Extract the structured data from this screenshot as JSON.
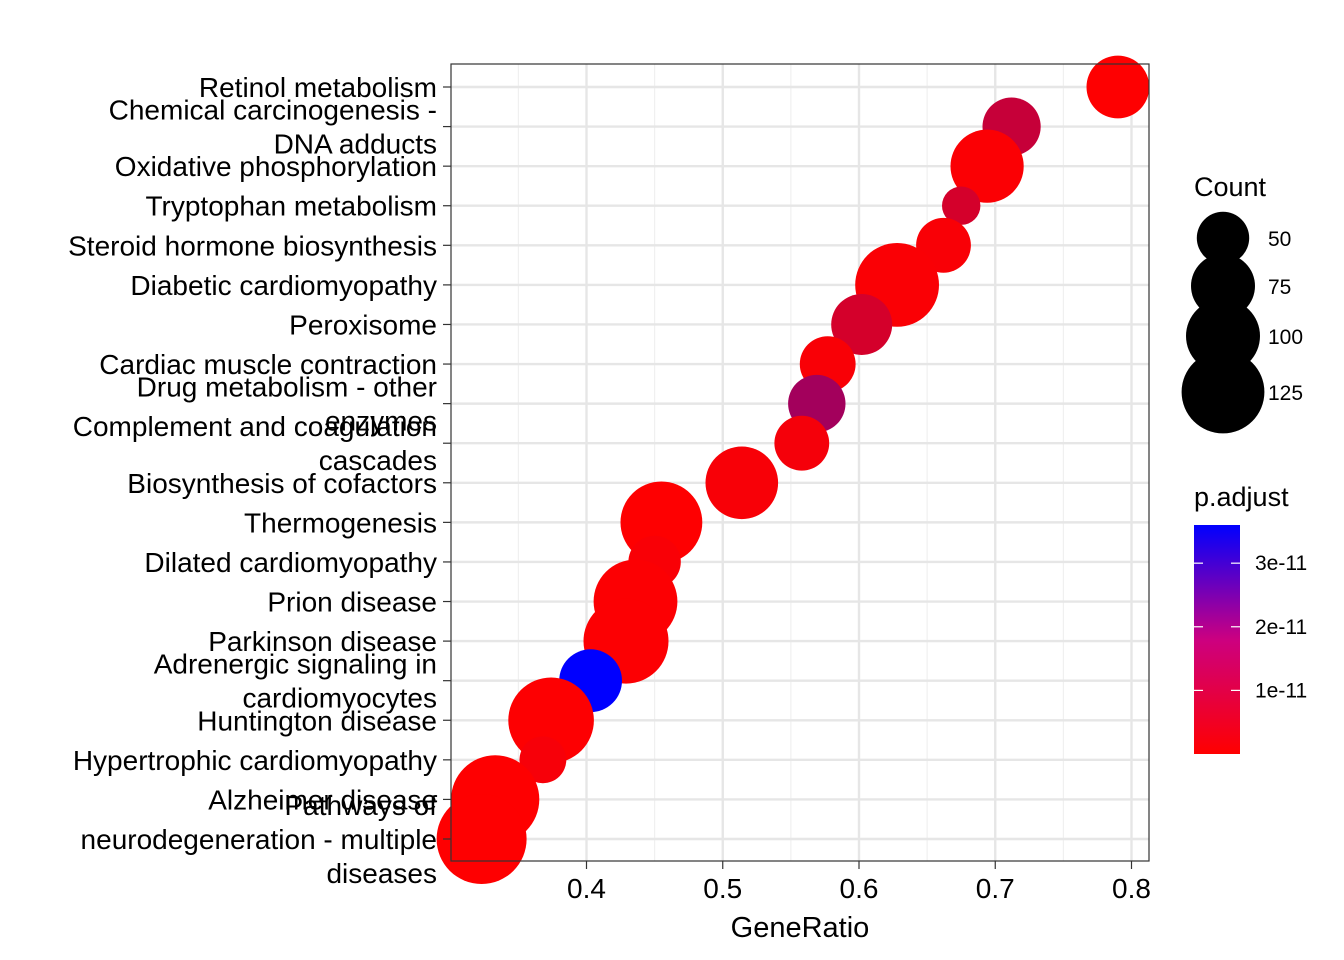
{
  "chart_data": {
    "type": "scatter",
    "xlabel": "GeneRatio",
    "ylabel": "",
    "xlim": [
      0.3,
      0.81
    ],
    "x_ticks": [
      "0.4",
      "0.5",
      "0.6",
      "0.7",
      "0.8"
    ],
    "grid": true,
    "legend_position": "right",
    "colors": {
      "low": "#ff0000",
      "high": "#0000ff"
    },
    "size_legend": {
      "title": "Count",
      "entries": [
        {
          "label": "50",
          "value": 50
        },
        {
          "label": "75",
          "value": 75
        },
        {
          "label": "100",
          "value": 100
        },
        {
          "label": "125",
          "value": 125
        }
      ]
    },
    "color_legend": {
      "title": "p.adjust",
      "range": [
        0,
        3.6e-11
      ],
      "ticks": [
        {
          "label": "3e-11",
          "value": 3e-11
        },
        {
          "label": "2e-11",
          "value": 2e-11
        },
        {
          "label": "1e-11",
          "value": 1e-11
        }
      ]
    },
    "points": [
      {
        "label": [
          "Retinol metabolism"
        ],
        "x": 0.79,
        "count": 72,
        "p_adjust": 2e-13
      },
      {
        "label": [
          "Chemical carcinogenesis -",
          "DNA adducts"
        ],
        "x": 0.712,
        "count": 62,
        "p_adjust": 8e-12
      },
      {
        "label": [
          "Oxidative phosphorylation"
        ],
        "x": 0.694,
        "count": 98,
        "p_adjust": 5e-13
      },
      {
        "label": [
          "Tryptophan metabolism"
        ],
        "x": 0.675,
        "count": 27,
        "p_adjust": 6e-12
      },
      {
        "label": [
          "Steroid hormone biosynthesis"
        ],
        "x": 0.662,
        "count": 55,
        "p_adjust": 9e-13
      },
      {
        "label": [
          "Diabetic cardiomyopathy"
        ],
        "x": 0.628,
        "count": 128,
        "p_adjust": 7e-13
      },
      {
        "label": [
          "Peroxisome"
        ],
        "x": 0.602,
        "count": 68,
        "p_adjust": 6e-12
      },
      {
        "label": [
          "Cardiac muscle contraction"
        ],
        "x": 0.577,
        "count": 57,
        "p_adjust": 9e-13
      },
      {
        "label": [
          "Drug metabolism - other",
          "enzymes"
        ],
        "x": 0.569,
        "count": 60,
        "p_adjust": 1.3e-11
      },
      {
        "label": [
          "Complement and coagulation",
          "cascades"
        ],
        "x": 0.558,
        "count": 55,
        "p_adjust": 1.4e-12
      },
      {
        "label": [
          "Biosynthesis of cofactors"
        ],
        "x": 0.514,
        "count": 96,
        "p_adjust": 1e-12
      },
      {
        "label": [
          "Thermogenesis"
        ],
        "x": 0.455,
        "count": 122,
        "p_adjust": 2e-13
      },
      {
        "label": [
          "Dilated cardiomyopathy"
        ],
        "x": 0.45,
        "count": 50,
        "p_adjust": 9e-13
      },
      {
        "label": [
          "Prion disease"
        ],
        "x": 0.436,
        "count": 128,
        "p_adjust": 4e-13
      },
      {
        "label": [
          "Parkinson disease"
        ],
        "x": 0.429,
        "count": 132,
        "p_adjust": 4e-13
      },
      {
        "label": [
          "Adrenergic signaling in",
          "cardiomyocytes"
        ],
        "x": 0.403,
        "count": 72,
        "p_adjust": 3.6e-11
      },
      {
        "label": [
          "Huntington disease"
        ],
        "x": 0.374,
        "count": 134,
        "p_adjust": 3e-13
      },
      {
        "label": [
          "Hypertrophic cardiomyopathy"
        ],
        "x": 0.368,
        "count": 40,
        "p_adjust": 1.2e-12
      },
      {
        "label": [
          "Alzheimer disease"
        ],
        "x": 0.333,
        "count": 142,
        "p_adjust": 2e-13
      },
      {
        "label": [
          "Pathways of",
          "neurodegeneration - multiple",
          "diseases"
        ],
        "x": 0.323,
        "count": 148,
        "p_adjust": 2e-13
      }
    ]
  }
}
